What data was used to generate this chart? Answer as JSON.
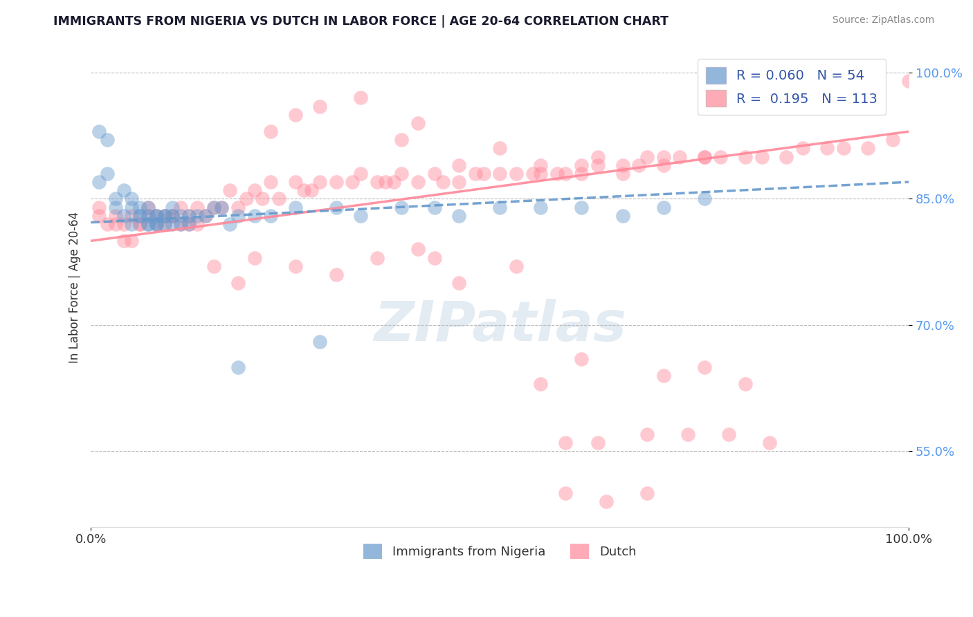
{
  "title": "IMMIGRANTS FROM NIGERIA VS DUTCH IN LABOR FORCE | AGE 20-64 CORRELATION CHART",
  "source": "Source: ZipAtlas.com",
  "ylabel": "In Labor Force | Age 20-64",
  "xlim": [
    0.0,
    1.0
  ],
  "ylim": [
    0.46,
    1.03
  ],
  "yticks": [
    0.55,
    0.7,
    0.85,
    1.0
  ],
  "ytick_labels": [
    "55.0%",
    "70.0%",
    "85.0%",
    "100.0%"
  ],
  "xticks": [
    0.0,
    1.0
  ],
  "xtick_labels": [
    "0.0%",
    "100.0%"
  ],
  "legend_labels": [
    "Immigrants from Nigeria",
    "Dutch"
  ],
  "R_nigeria": 0.06,
  "N_nigeria": 54,
  "R_dutch": 0.195,
  "N_dutch": 113,
  "color_nigeria": "#6699CC",
  "color_dutch": "#FF8899",
  "background_color": "#ffffff",
  "grid_color": "#BBBBBB",
  "watermark": "ZIPatlas",
  "nigeria_trend_start": 0.822,
  "nigeria_trend_end": 0.87,
  "dutch_trend_start": 0.8,
  "dutch_trend_end": 0.93,
  "nigeria_x": [
    0.01,
    0.01,
    0.02,
    0.02,
    0.03,
    0.03,
    0.04,
    0.04,
    0.05,
    0.05,
    0.05,
    0.06,
    0.06,
    0.06,
    0.07,
    0.07,
    0.07,
    0.07,
    0.08,
    0.08,
    0.08,
    0.08,
    0.09,
    0.09,
    0.09,
    0.1,
    0.1,
    0.1,
    0.11,
    0.11,
    0.12,
    0.12,
    0.13,
    0.14,
    0.15,
    0.16,
    0.17,
    0.18,
    0.2,
    0.22,
    0.25,
    0.3,
    0.33,
    0.38,
    0.42,
    0.45,
    0.5,
    0.55,
    0.6,
    0.65,
    0.7,
    0.75,
    0.28,
    0.18
  ],
  "nigeria_y": [
    0.93,
    0.87,
    0.88,
    0.92,
    0.84,
    0.85,
    0.83,
    0.86,
    0.82,
    0.84,
    0.85,
    0.83,
    0.83,
    0.84,
    0.82,
    0.83,
    0.82,
    0.84,
    0.82,
    0.82,
    0.83,
    0.83,
    0.82,
    0.83,
    0.83,
    0.83,
    0.82,
    0.84,
    0.82,
    0.83,
    0.82,
    0.83,
    0.83,
    0.83,
    0.84,
    0.84,
    0.82,
    0.83,
    0.83,
    0.83,
    0.84,
    0.84,
    0.83,
    0.84,
    0.84,
    0.83,
    0.84,
    0.84,
    0.84,
    0.83,
    0.84,
    0.85,
    0.68,
    0.65
  ],
  "dutch_x": [
    0.01,
    0.01,
    0.02,
    0.03,
    0.03,
    0.04,
    0.04,
    0.05,
    0.05,
    0.06,
    0.06,
    0.07,
    0.07,
    0.08,
    0.08,
    0.09,
    0.09,
    0.1,
    0.1,
    0.11,
    0.11,
    0.12,
    0.12,
    0.13,
    0.13,
    0.14,
    0.15,
    0.16,
    0.17,
    0.18,
    0.19,
    0.2,
    0.21,
    0.22,
    0.23,
    0.25,
    0.26,
    0.27,
    0.28,
    0.3,
    0.32,
    0.33,
    0.35,
    0.36,
    0.37,
    0.38,
    0.4,
    0.42,
    0.43,
    0.45,
    0.47,
    0.48,
    0.5,
    0.52,
    0.54,
    0.55,
    0.57,
    0.58,
    0.6,
    0.62,
    0.65,
    0.67,
    0.68,
    0.7,
    0.72,
    0.75,
    0.77,
    0.8,
    0.82,
    0.85,
    0.87,
    0.9,
    0.92,
    0.95,
    0.98,
    1.0,
    0.22,
    0.25,
    0.28,
    0.33,
    0.38,
    0.4,
    0.45,
    0.5,
    0.55,
    0.6,
    0.62,
    0.65,
    0.7,
    0.75,
    0.45,
    0.52,
    0.35,
    0.4,
    0.15,
    0.18,
    0.2,
    0.25,
    0.3,
    0.42,
    0.55,
    0.6,
    0.7,
    0.75,
    0.8,
    0.58,
    0.62,
    0.68,
    0.73,
    0.78,
    0.83,
    0.58,
    0.63,
    0.68
  ],
  "dutch_y": [
    0.83,
    0.84,
    0.82,
    0.82,
    0.83,
    0.8,
    0.82,
    0.8,
    0.83,
    0.82,
    0.82,
    0.83,
    0.84,
    0.82,
    0.83,
    0.82,
    0.83,
    0.83,
    0.83,
    0.84,
    0.82,
    0.82,
    0.83,
    0.82,
    0.84,
    0.83,
    0.84,
    0.84,
    0.86,
    0.84,
    0.85,
    0.86,
    0.85,
    0.87,
    0.85,
    0.87,
    0.86,
    0.86,
    0.87,
    0.87,
    0.87,
    0.88,
    0.87,
    0.87,
    0.87,
    0.88,
    0.87,
    0.88,
    0.87,
    0.87,
    0.88,
    0.88,
    0.88,
    0.88,
    0.88,
    0.89,
    0.88,
    0.88,
    0.89,
    0.89,
    0.89,
    0.89,
    0.9,
    0.89,
    0.9,
    0.9,
    0.9,
    0.9,
    0.9,
    0.9,
    0.91,
    0.91,
    0.91,
    0.91,
    0.92,
    0.99,
    0.93,
    0.95,
    0.96,
    0.97,
    0.92,
    0.94,
    0.89,
    0.91,
    0.88,
    0.88,
    0.9,
    0.88,
    0.9,
    0.9,
    0.75,
    0.77,
    0.78,
    0.79,
    0.77,
    0.75,
    0.78,
    0.77,
    0.76,
    0.78,
    0.63,
    0.66,
    0.64,
    0.65,
    0.63,
    0.56,
    0.56,
    0.57,
    0.57,
    0.57,
    0.56,
    0.5,
    0.49,
    0.5
  ]
}
